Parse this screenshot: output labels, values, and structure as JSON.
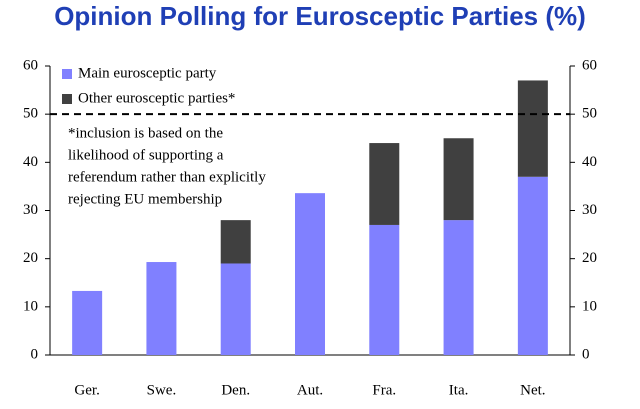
{
  "chart_data": {
    "type": "stacked-bar",
    "title": "Opinion Polling for Eurosceptic Parties (%)",
    "categories": [
      "Ger.",
      "Swe.",
      "Den.",
      "Aut.",
      "Fra.",
      "Ita.",
      "Net."
    ],
    "series": [
      {
        "name": "Main eurosceptic  party",
        "color": "#8080ff",
        "values": [
          13.3,
          19.3,
          19,
          33.6,
          27,
          28,
          37
        ]
      },
      {
        "name": "Other eurosceptic parties*",
        "color": "#404040",
        "values": [
          null,
          null,
          9,
          null,
          17,
          17,
          20
        ]
      }
    ],
    "ylim": [
      0,
      60
    ],
    "yticks": [
      0,
      10,
      20,
      30,
      40,
      50,
      60
    ],
    "y2lim": [
      0,
      60
    ],
    "y2ticks": [
      0,
      10,
      20,
      30,
      40,
      50,
      60
    ],
    "reference_line": 50,
    "annotation": [
      "*inclusion is based on the",
      "likelihood of supporting  a",
      "referendum rather than explicitly",
      "rejecting EU membership"
    ]
  }
}
